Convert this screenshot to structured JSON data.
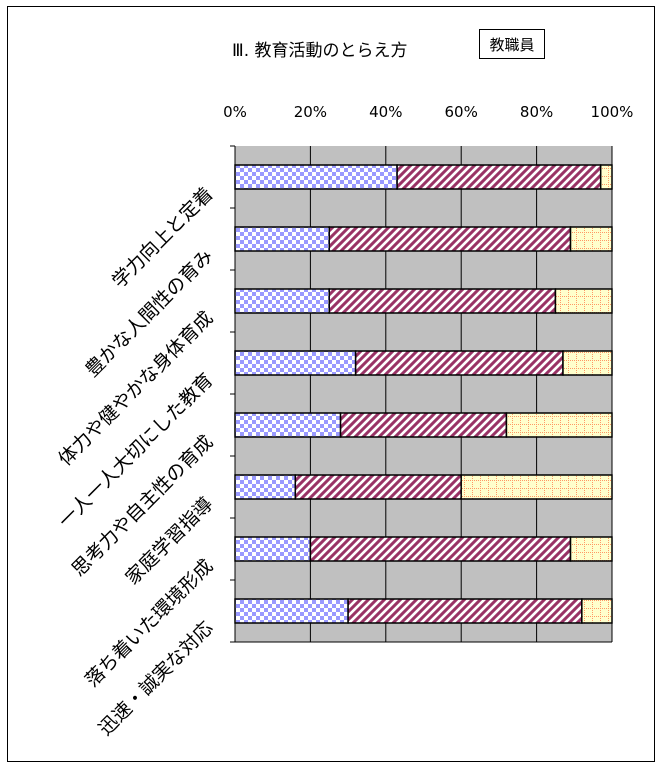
{
  "header": {
    "title": "Ⅲ. 教育活動のとらえ方",
    "badge": "教職員"
  },
  "chart_data": {
    "type": "bar",
    "orientation": "horizontal",
    "stacked": "percent",
    "title": "Ⅲ. 教育活動のとらえ方",
    "xlabel": "",
    "ylabel": "",
    "xlim": [
      0,
      100
    ],
    "x_ticks": [
      "0%",
      "20%",
      "40%",
      "60%",
      "80%",
      "100%"
    ],
    "grid": true,
    "legend": "none",
    "categories": [
      "学力向上と定着",
      "豊かな人間性の育み",
      "体力や健やかな身体育成",
      "一人一人大切にした教育",
      "思考力や自主性の育成",
      "家庭学習指導",
      "落ち着いた環境形成",
      "迅速・誠実な対応"
    ],
    "series": [
      {
        "color": "#9999ff",
        "pattern": "checker",
        "values": [
          43,
          25,
          25,
          32,
          28,
          16,
          20,
          30
        ]
      },
      {
        "color": "#993366",
        "pattern": "diagonal-stripes",
        "values": [
          54,
          64,
          60,
          55,
          44,
          44,
          69,
          62
        ]
      },
      {
        "color": "#ffff99",
        "pattern": "grid",
        "values": [
          3,
          11,
          15,
          13,
          28,
          40,
          11,
          8
        ]
      }
    ]
  }
}
